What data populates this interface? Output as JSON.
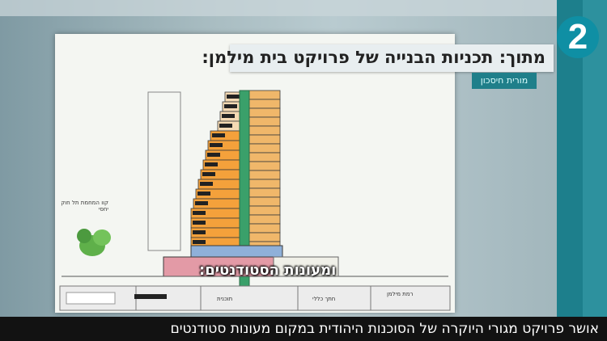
{
  "channel": {
    "logo_text": "2"
  },
  "title_bar": {
    "text": "מתוך: תכניות הבנייה של פרויקט בית מילמן:"
  },
  "credit": {
    "text": "מורית חיסכון"
  },
  "subtitle": {
    "text": "ומעונות הסטודנטים:"
  },
  "ticker": {
    "text": "אושר פרויקט מגורי היוקרה של הסוכנות היהודית במקום מעונות סטודנטים"
  },
  "plan": {
    "legend_note": "קוו המחמת תל חוק יחסי",
    "footer_labels": [
      "תוכנית",
      "חתך כללי",
      "רמת מילמן"
    ],
    "colors": {
      "orange": "#f4a13b",
      "green": "#3aa06a",
      "blue": "#8fb0d9",
      "pink": "#e39aa6",
      "outline": "#3b3b3b"
    }
  }
}
